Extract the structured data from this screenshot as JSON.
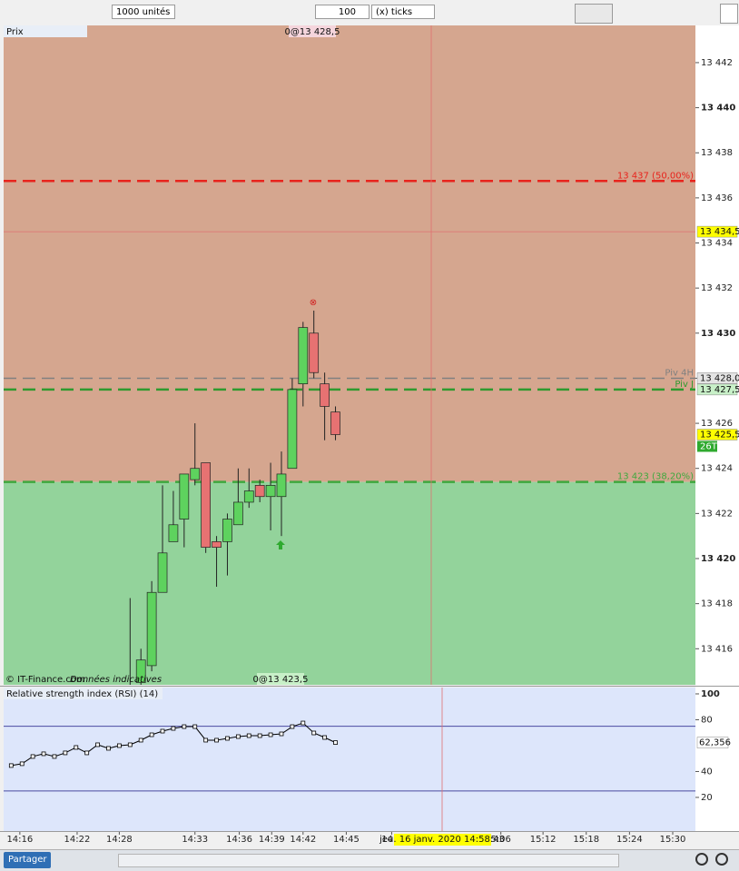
{
  "toolbar": {
    "quantity": "1000 unités",
    "tick_count": "100",
    "tick_unit": "(x) ticks"
  },
  "chart_data": [
    {
      "type": "candlestick",
      "title": "Prix",
      "open": [
        13413.5,
        13414.5,
        13415.25,
        13418.5,
        13420.75,
        13421.75,
        13423.5,
        13424.25,
        13420.75,
        13420.75,
        13421.5,
        13422.5,
        13423.25,
        13422.75,
        13422.75,
        13424,
        13427.75,
        13430,
        13427.75,
        13426.5
      ],
      "close": [
        13414,
        13415.5,
        13418.5,
        13420.25,
        13421.5,
        13423.75,
        13424,
        13420.5,
        13420.5,
        13421.75,
        13422.5,
        13423,
        13422.75,
        13423.25,
        13423.75,
        13427.5,
        13430.25,
        13428.25,
        13426.75,
        13425.5
      ],
      "high": [
        13418.25,
        13416,
        13419,
        13423.25,
        13423,
        13423.75,
        13426,
        13424.25,
        13421,
        13422,
        13424,
        13424,
        13423.5,
        13424.25,
        13424.75,
        13428,
        13430.5,
        13431,
        13428.25,
        13426.75
      ],
      "low": [
        13413,
        13414.25,
        13415,
        13418.5,
        13420.75,
        13420.5,
        13423.25,
        13420.25,
        13418.75,
        13419.25,
        13421.5,
        13422.25,
        13422.5,
        13421.25,
        13421,
        13424,
        13426.75,
        13428,
        13425.25,
        13425.25
      ],
      "up_color": "#5ed25e",
      "down_color": "#e77272",
      "ylim": [
        13414.4,
        13443.65
      ],
      "yticks": [
        {
          "value": 13416,
          "label": "13 416"
        },
        {
          "value": 13418,
          "label": "13 418"
        },
        {
          "value": 13420,
          "label": "13 420"
        },
        {
          "value": 13422,
          "label": "13 422"
        },
        {
          "value": 13424,
          "label": "13 424"
        },
        {
          "value": 13426,
          "label": "13 426"
        },
        {
          "value": 13428,
          "label": "13 428"
        },
        {
          "value": 13430,
          "label": "13 430"
        },
        {
          "value": 13432,
          "label": "13 432"
        },
        {
          "value": 13434,
          "label": "13 434"
        },
        {
          "value": 13436,
          "label": "13 436"
        },
        {
          "value": 13438,
          "label": "13 438"
        },
        {
          "value": 13440,
          "label": "13 440"
        },
        {
          "value": 13442,
          "label": "13 442"
        }
      ],
      "xlim": [
        -11.7,
        52.3
      ],
      "xticks": [
        {
          "value": -10.2,
          "label": "14:16"
        },
        {
          "value": -4.9,
          "label": "14:22"
        },
        {
          "value": -1,
          "label": "14:28"
        },
        {
          "value": 6,
          "label": "14:33"
        },
        {
          "value": 10.1,
          "label": "14:36"
        },
        {
          "value": 13.1,
          "label": "14:39"
        },
        {
          "value": 16,
          "label": "14:42"
        },
        {
          "value": 20,
          "label": "14:45"
        },
        {
          "value": 24.2,
          "label": "14:5"
        },
        {
          "value": 34.3,
          "label": "5:06"
        },
        {
          "value": 38.2,
          "label": "15:12"
        },
        {
          "value": 42.2,
          "label": "15:18"
        },
        {
          "value": 46.2,
          "label": "15:24"
        },
        {
          "value": 50.2,
          "label": "15:30"
        }
      ],
      "levels": [
        {
          "value": 13436.75,
          "label": "13 437 (50,00%)",
          "color": "#e8231c"
        },
        {
          "value": 13428,
          "label": "Piv 4H",
          "color": "#808080"
        },
        {
          "value": 13427.5,
          "label": "Piv J",
          "color": "#2f9a2f"
        },
        {
          "value": 13423.4,
          "label": "13 423 (38,20%)",
          "color": "#3fa83f"
        }
      ],
      "zone_colors": [
        "#d5a68f",
        "#93d39b"
      ],
      "price_tags": [
        {
          "value": 13434.5,
          "label": "13 434,5",
          "color": "#ffff00"
        },
        {
          "value": 13428,
          "label": "13 428,0",
          "color": "#e4e4e4"
        },
        {
          "value": 13427.5,
          "label": "13 427,5",
          "color": "#c8f0c8"
        },
        {
          "value": 13425.5,
          "label": "13 425,5",
          "color": "#ffff00"
        }
      ],
      "annotations": {
        "top": "0@13 428,5",
        "bottom": "0@13 423,5",
        "bar_count": "26T",
        "copyright": "© IT-Finance.com",
        "disclaimer": "Données indicatives"
      }
    },
    {
      "type": "line",
      "title": "Relative strength index (RSI) (14)",
      "values": [
        44.6,
        46.0,
        51.6,
        53.7,
        51.6,
        54.4,
        58.6,
        54.4,
        60.7,
        57.9,
        60.0,
        60.7,
        64.2,
        68.4,
        71.2,
        73.3,
        74.7,
        74.7,
        64.2,
        64.2,
        65.6,
        67.0,
        67.7,
        67.7,
        68.4,
        69.1,
        74.7,
        77.5,
        69.8,
        66.3,
        62.356
      ],
      "value_labels": [
        null,
        null,
        null,
        null,
        null,
        null,
        null,
        null,
        null,
        null,
        null,
        null,
        null,
        null,
        null,
        null,
        null,
        null,
        null,
        null,
        null,
        null,
        null,
        null,
        null,
        null,
        null,
        null,
        null,
        null,
        "62,356"
      ],
      "color": "#000000",
      "levels": [
        75,
        25
      ],
      "level_color": "#4a4aa0",
      "ylim": [
        -6,
        104.9
      ],
      "yticks": [
        20,
        40,
        80,
        100
      ],
      "xlim": [
        -11.7,
        52.3
      ]
    }
  ],
  "crosshair": {
    "time": "jeu. 16 janv. 2020 14:58:43"
  },
  "footer": {
    "share": "Partager"
  }
}
